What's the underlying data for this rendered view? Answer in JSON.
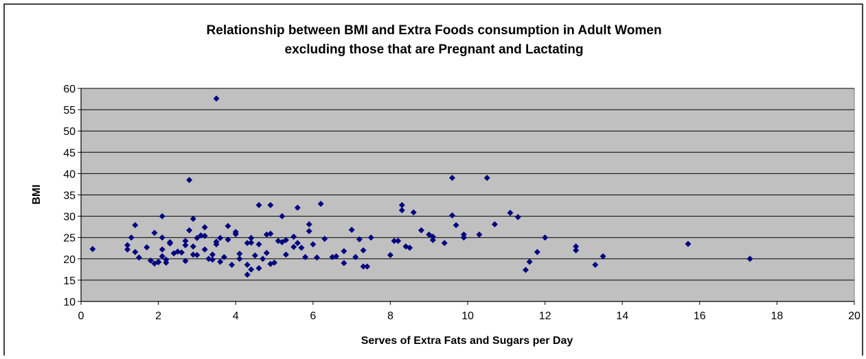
{
  "chart_data": {
    "type": "scatter",
    "title_line1": "Relationship between BMI and Extra Foods consumption in Adult Women",
    "title_line2": "excluding those that are Pregnant and Lactating",
    "xlabel": "Serves of Extra Fats and Sugars per Day",
    "ylabel": "BMI",
    "xlim": [
      0,
      20
    ],
    "ylim": [
      10,
      60
    ],
    "xticks": [
      "0",
      "2",
      "4",
      "6",
      "8",
      "10",
      "12",
      "14",
      "16",
      "18",
      "20"
    ],
    "yticks": [
      "10",
      "15",
      "20",
      "25",
      "30",
      "35",
      "40",
      "45",
      "50",
      "55",
      "60"
    ],
    "grid": "horizontal",
    "legend": "none",
    "colors": {
      "plot_bg": "#c0c0c0",
      "marker": "#000080",
      "grid": "#000000"
    },
    "points": [
      [
        0.3,
        22.3
      ],
      [
        1.2,
        22.2
      ],
      [
        1.2,
        23.2
      ],
      [
        1.3,
        25.0
      ],
      [
        1.4,
        27.9
      ],
      [
        1.4,
        21.6
      ],
      [
        1.5,
        20.3
      ],
      [
        1.7,
        22.7
      ],
      [
        1.8,
        19.6
      ],
      [
        1.9,
        18.9
      ],
      [
        1.9,
        26.1
      ],
      [
        2.0,
        19.2
      ],
      [
        2.0,
        19.3
      ],
      [
        2.1,
        25.0
      ],
      [
        2.1,
        30.0
      ],
      [
        2.1,
        22.2
      ],
      [
        2.1,
        20.6
      ],
      [
        2.2,
        19.1
      ],
      [
        2.2,
        19.8
      ],
      [
        2.3,
        23.9
      ],
      [
        2.3,
        23.6
      ],
      [
        2.4,
        21.3
      ],
      [
        2.5,
        21.7
      ],
      [
        2.6,
        21.5
      ],
      [
        2.7,
        19.5
      ],
      [
        2.7,
        24.2
      ],
      [
        2.7,
        23.2
      ],
      [
        2.8,
        26.7
      ],
      [
        2.8,
        38.5
      ],
      [
        2.9,
        21.0
      ],
      [
        2.9,
        22.9
      ],
      [
        2.9,
        29.4
      ],
      [
        3.0,
        20.9
      ],
      [
        3.0,
        24.9
      ],
      [
        3.1,
        25.5
      ],
      [
        3.2,
        27.4
      ],
      [
        3.2,
        25.4
      ],
      [
        3.2,
        22.2
      ],
      [
        3.3,
        20.0
      ],
      [
        3.4,
        21.0
      ],
      [
        3.4,
        19.8
      ],
      [
        3.5,
        24.0
      ],
      [
        3.5,
        23.4
      ],
      [
        3.5,
        57.6
      ],
      [
        3.6,
        19.3
      ],
      [
        3.6,
        24.9
      ],
      [
        3.7,
        20.4
      ],
      [
        3.8,
        27.7
      ],
      [
        3.8,
        24.5
      ],
      [
        3.9,
        18.6
      ],
      [
        4.0,
        26.3
      ],
      [
        4.0,
        25.8
      ],
      [
        4.1,
        21.2
      ],
      [
        4.1,
        20.0
      ],
      [
        4.3,
        23.7
      ],
      [
        4.3,
        16.3
      ],
      [
        4.3,
        18.6
      ],
      [
        4.4,
        17.5
      ],
      [
        4.4,
        24.9
      ],
      [
        4.4,
        23.8
      ],
      [
        4.5,
        20.8
      ],
      [
        4.6,
        23.4
      ],
      [
        4.6,
        32.6
      ],
      [
        4.6,
        17.8
      ],
      [
        4.7,
        20.0
      ],
      [
        4.8,
        21.4
      ],
      [
        4.8,
        25.7
      ],
      [
        4.9,
        32.6
      ],
      [
        4.9,
        18.8
      ],
      [
        4.9,
        25.9
      ],
      [
        5.0,
        19.1
      ],
      [
        5.1,
        24.2
      ],
      [
        5.2,
        23.9
      ],
      [
        5.2,
        30.0
      ],
      [
        5.3,
        24.4
      ],
      [
        5.3,
        21.0
      ],
      [
        5.5,
        22.8
      ],
      [
        5.5,
        25.2
      ],
      [
        5.6,
        32.0
      ],
      [
        5.6,
        23.7
      ],
      [
        5.7,
        22.6
      ],
      [
        5.8,
        20.4
      ],
      [
        5.9,
        26.5
      ],
      [
        5.9,
        28.1
      ],
      [
        6.0,
        23.4
      ],
      [
        6.1,
        20.3
      ],
      [
        6.2,
        32.9
      ],
      [
        6.3,
        24.7
      ],
      [
        6.5,
        20.4
      ],
      [
        6.6,
        20.6
      ],
      [
        6.8,
        19.0
      ],
      [
        6.8,
        21.8
      ],
      [
        7.0,
        26.8
      ],
      [
        7.1,
        20.4
      ],
      [
        7.2,
        24.6
      ],
      [
        7.3,
        18.2
      ],
      [
        7.3,
        22.0
      ],
      [
        7.4,
        18.2
      ],
      [
        7.5,
        25.0
      ],
      [
        8.0,
        20.9
      ],
      [
        8.1,
        24.2
      ],
      [
        8.2,
        24.2
      ],
      [
        8.3,
        31.4
      ],
      [
        8.3,
        32.6
      ],
      [
        8.4,
        22.9
      ],
      [
        8.5,
        22.6
      ],
      [
        8.6,
        30.9
      ],
      [
        8.8,
        26.7
      ],
      [
        9.0,
        25.7
      ],
      [
        9.1,
        25.2
      ],
      [
        9.1,
        24.4
      ],
      [
        9.4,
        23.7
      ],
      [
        9.6,
        30.2
      ],
      [
        9.6,
        39.0
      ],
      [
        9.7,
        27.9
      ],
      [
        9.9,
        25.0
      ],
      [
        9.9,
        25.7
      ],
      [
        10.3,
        25.7
      ],
      [
        10.5,
        39.0
      ],
      [
        10.7,
        28.1
      ],
      [
        11.1,
        30.8
      ],
      [
        11.3,
        29.8
      ],
      [
        11.5,
        17.4
      ],
      [
        11.6,
        19.3
      ],
      [
        11.8,
        21.6
      ],
      [
        12.0,
        25.0
      ],
      [
        12.8,
        22.9
      ],
      [
        12.8,
        22.0
      ],
      [
        13.3,
        18.6
      ],
      [
        13.5,
        20.6
      ],
      [
        15.7,
        23.5
      ],
      [
        17.3,
        20.0
      ]
    ]
  }
}
